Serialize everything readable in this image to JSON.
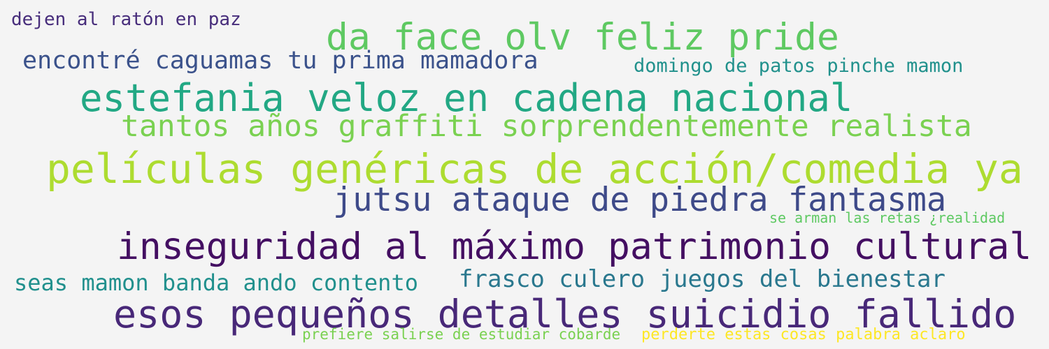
{
  "phrases": [
    {
      "text": "dejen al ratón en paz",
      "color": "#472d7b"
    },
    {
      "text": "da face olv feliz pride",
      "color": "#5ec962"
    },
    {
      "text": "encontré caguamas tu prima mamadora",
      "color": "#3b528b"
    },
    {
      "text": "domingo de patos pinche mamon",
      "color": "#21918c"
    },
    {
      "text": "estefania veloz en cadena nacional",
      "color": "#22a884"
    },
    {
      "text": "tantos años graffiti sorprendentemente realista",
      "color": "#7ad151"
    },
    {
      "text": "películas genéricas de acción/comedia ya",
      "color": "#addc30"
    },
    {
      "text": "jutsu ataque de piedra fantasma",
      "color": "#3e4a89"
    },
    {
      "text": "se arman las retas ¿realidad",
      "color": "#5ec962"
    },
    {
      "text": "inseguridad al máximo patrimonio cultural",
      "color": "#440f62"
    },
    {
      "text": "seas mamon banda ando contento",
      "color": "#21908d"
    },
    {
      "text": "frasco culero juegos del bienestar",
      "color": "#2a788e"
    },
    {
      "text": "esos pequeños detalles suicidio fallido",
      "color": "#482878"
    },
    {
      "text": "prefiere salirse de estudiar cobarde",
      "color": "#7ad151"
    },
    {
      "text": "perderte estas cosas palabra aclaro",
      "color": "#fde725"
    }
  ]
}
